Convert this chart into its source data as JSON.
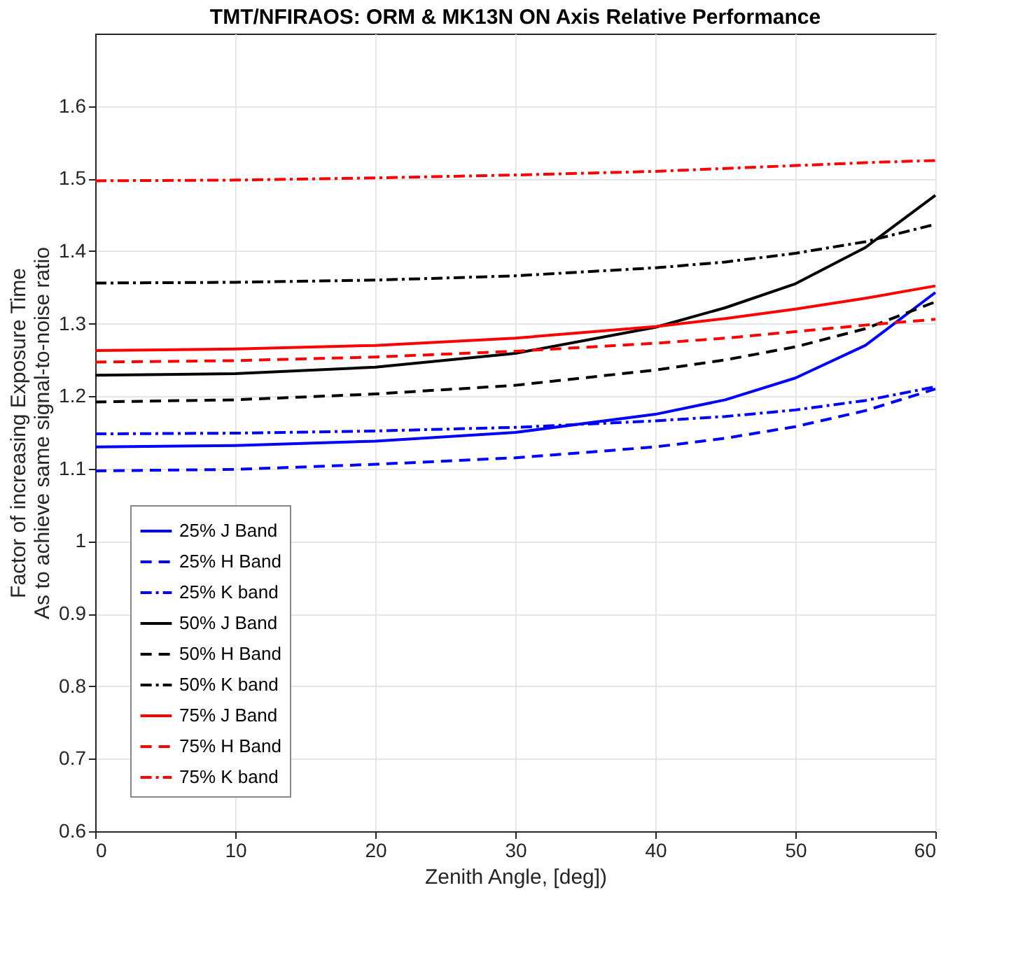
{
  "chart_data": {
    "type": "line",
    "title": "TMT/NFIRAOS: ORM & MK13N ON Axis Relative Performance",
    "xlabel": "Zenith Angle, [deg])",
    "ylabel": "Factor of increasing Exposure Time\nAs to achieve same signal-to-noise ratio",
    "x": [
      0,
      10,
      20,
      30,
      40,
      45,
      50,
      55,
      60
    ],
    "series": [
      {
        "name": "25% J Band",
        "color": "#0000ff",
        "line_style": "solid",
        "values": [
          1.13,
          1.132,
          1.138,
          1.15,
          1.175,
          1.195,
          1.225,
          1.27,
          1.343
        ]
      },
      {
        "name": "25% H Band",
        "color": "#0000ff",
        "line_style": "dashed",
        "values": [
          1.097,
          1.099,
          1.106,
          1.115,
          1.13,
          1.142,
          1.158,
          1.18,
          1.21
        ]
      },
      {
        "name": "25% K band",
        "color": "#0000ff",
        "line_style": "dashdot",
        "values": [
          1.148,
          1.149,
          1.152,
          1.157,
          1.166,
          1.172,
          1.181,
          1.194,
          1.213
        ]
      },
      {
        "name": "50% J Band",
        "color": "#000000",
        "line_style": "solid",
        "values": [
          1.229,
          1.231,
          1.24,
          1.259,
          1.295,
          1.322,
          1.355,
          1.405,
          1.477
        ]
      },
      {
        "name": "50% H Band",
        "color": "#000000",
        "line_style": "dashed",
        "values": [
          1.192,
          1.195,
          1.203,
          1.215,
          1.236,
          1.25,
          1.268,
          1.293,
          1.33
        ]
      },
      {
        "name": "50% K band",
        "color": "#000000",
        "line_style": "dashdot",
        "values": [
          1.356,
          1.357,
          1.36,
          1.366,
          1.377,
          1.385,
          1.397,
          1.413,
          1.437
        ]
      },
      {
        "name": "75% J Band",
        "color": "#ff0000",
        "line_style": "solid",
        "values": [
          1.263,
          1.265,
          1.27,
          1.28,
          1.296,
          1.307,
          1.32,
          1.335,
          1.352
        ]
      },
      {
        "name": "75% H Band",
        "color": "#ff0000",
        "line_style": "dashed",
        "values": [
          1.247,
          1.249,
          1.254,
          1.262,
          1.273,
          1.28,
          1.289,
          1.298,
          1.306
        ]
      },
      {
        "name": "75% K band",
        "color": "#ff0000",
        "line_style": "dashdot",
        "values": [
          1.497,
          1.498,
          1.501,
          1.505,
          1.51,
          1.514,
          1.518,
          1.522,
          1.525
        ]
      }
    ],
    "xlim": [
      0,
      60
    ],
    "xticks": [
      0,
      10,
      20,
      30,
      40,
      50,
      60
    ],
    "ylim": [
      0.6,
      1.7
    ],
    "yticks": [
      0.6,
      0.7,
      0.8,
      0.9,
      1,
      1.1,
      1.2,
      1.3,
      1.4,
      1.5,
      1.6
    ],
    "grid": true,
    "legend": "bottom left",
    "marker": "none"
  }
}
